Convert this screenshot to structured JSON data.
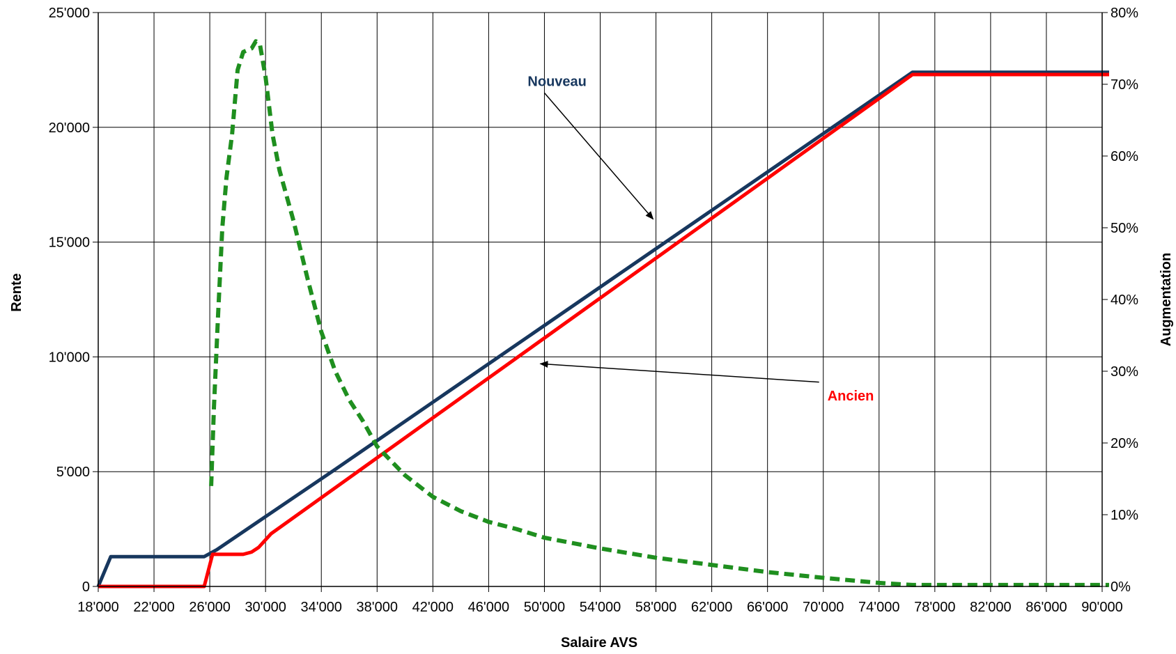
{
  "chart_data": {
    "type": "line",
    "xlabel": "Salaire AVS",
    "ylabel": "Rente",
    "y2label": "Augmentation",
    "xlim": [
      18000,
      90000
    ],
    "ylim": [
      0,
      25000
    ],
    "y2lim": [
      0,
      80
    ],
    "grid": true,
    "x_ticks": [
      18000,
      22000,
      26000,
      30000,
      34000,
      38000,
      42000,
      46000,
      50000,
      54000,
      58000,
      62000,
      66000,
      70000,
      74000,
      78000,
      82000,
      86000,
      90000
    ],
    "x_tick_labels": [
      "18'000",
      "22'000",
      "26'000",
      "30'000",
      "34'000",
      "38'000",
      "42'000",
      "46'000",
      "50'000",
      "54'000",
      "58'000",
      "62'000",
      "66'000",
      "70'000",
      "74'000",
      "78'000",
      "82'000",
      "86'000",
      "90'000"
    ],
    "y_ticks": [
      0,
      5000,
      10000,
      15000,
      20000,
      25000
    ],
    "y_tick_labels": [
      "0",
      "5'000",
      "10'000",
      "15'000",
      "20'000",
      "25'000"
    ],
    "y2_ticks": [
      0,
      10,
      20,
      30,
      40,
      50,
      60,
      70,
      80
    ],
    "y2_tick_labels": [
      "0%",
      "10%",
      "20%",
      "30%",
      "40%",
      "50%",
      "60%",
      "70%",
      "80%"
    ],
    "series": [
      {
        "name": "Nouveau",
        "color": "#17375e",
        "style": "solid",
        "axis": "left",
        "points": [
          [
            18000,
            0
          ],
          [
            18900,
            1300
          ],
          [
            25600,
            1300
          ],
          [
            26500,
            1600
          ],
          [
            35000,
            5100
          ],
          [
            76400,
            22400
          ],
          [
            90500,
            22400
          ]
        ]
      },
      {
        "name": "Ancien",
        "color": "#ff0000",
        "style": "solid",
        "axis": "left",
        "points": [
          [
            18000,
            0
          ],
          [
            25600,
            0
          ],
          [
            26200,
            1400
          ],
          [
            28400,
            1400
          ],
          [
            29000,
            1500
          ],
          [
            29500,
            1700
          ],
          [
            30400,
            2300
          ],
          [
            76400,
            22300
          ],
          [
            90500,
            22300
          ]
        ]
      },
      {
        "name": "",
        "color": "#1f8f1f",
        "style": "dashed",
        "axis": "right",
        "points": [
          [
            26100,
            14
          ],
          [
            26300,
            25
          ],
          [
            26600,
            38
          ],
          [
            26900,
            50
          ],
          [
            27200,
            57
          ],
          [
            27600,
            63
          ],
          [
            28000,
            72
          ],
          [
            28400,
            74.5
          ],
          [
            29000,
            75
          ],
          [
            29300,
            76
          ],
          [
            29600,
            75.5
          ],
          [
            30000,
            71
          ],
          [
            30500,
            63
          ],
          [
            31000,
            58
          ],
          [
            32000,
            51
          ],
          [
            33000,
            43
          ],
          [
            34000,
            35.5
          ],
          [
            35000,
            30
          ],
          [
            36000,
            26
          ],
          [
            37000,
            23
          ],
          [
            38000,
            19.5
          ],
          [
            40000,
            15.5
          ],
          [
            42000,
            12.5
          ],
          [
            44000,
            10.5
          ],
          [
            46000,
            9
          ],
          [
            48000,
            8
          ],
          [
            50000,
            6.8
          ],
          [
            54000,
            5.3
          ],
          [
            58000,
            4
          ],
          [
            62000,
            3
          ],
          [
            66000,
            2
          ],
          [
            70000,
            1.2
          ],
          [
            74000,
            0.5
          ],
          [
            76400,
            0.2
          ],
          [
            90500,
            0.2
          ]
        ]
      }
    ],
    "annotations": [
      {
        "text": "Nouveau",
        "color": "#17375e",
        "at": [
          48800,
          21800
        ],
        "arrow_from": [
          50000,
          21500
        ],
        "arrow_to": [
          57800,
          16000
        ]
      },
      {
        "text": "Ancien",
        "color": "#ff0000",
        "at": [
          70300,
          8100
        ],
        "arrow_from": [
          69700,
          8900
        ],
        "arrow_to": [
          49700,
          9700
        ]
      }
    ]
  }
}
